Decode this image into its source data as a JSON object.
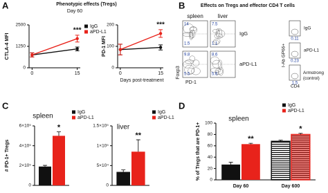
{
  "figure": {
    "panels": [
      {
        "letter": "A",
        "title": "Phenotypic effects (Tregs)",
        "subtitle": "Day 60",
        "xlabel": "Days post-treatment"
      },
      {
        "letter": "B",
        "title": "Effects on Tregs and effector CD4 T cells"
      },
      {
        "letter": "C"
      },
      {
        "letter": "D"
      }
    ]
  },
  "flow": {
    "columns": [
      "spleen",
      "liver"
    ],
    "y_label": "Foxp3",
    "x_label": "PD-1",
    "rows": [
      {
        "label": "IgG",
        "gates": [
          [
            14,
            1.5
          ],
          [
            7.5,
            1.1
          ]
        ]
      },
      {
        "label": "aPD-L1",
        "gates": [
          [
            9.8,
            5.5
          ],
          [
            8.6,
            5.6
          ]
        ]
      }
    ],
    "side": {
      "y_label": "I-Ab GP66+",
      "x_label": "CD4",
      "rows": [
        {
          "label": "IgG",
          "value": 0.11
        },
        {
          "label": "aPD-L1",
          "value": 0.23
        },
        {
          "label": "Armstrong (control)",
          "value": 1.5
        }
      ]
    }
  },
  "chart_data": [
    {
      "type": "line",
      "ylabel": "CTLA-4 MFI",
      "x": [
        0,
        15
      ],
      "xlim": [
        -1,
        16
      ],
      "xticks": [
        0,
        15
      ],
      "ylim": [
        0,
        2500
      ],
      "yticks": [
        0,
        1250,
        2500
      ],
      "legend": "upper right",
      "series": [
        {
          "name": "IgG",
          "color": "#111111",
          "values": [
            750,
            1100
          ],
          "errors": [
            120,
            110
          ]
        },
        {
          "name": "aPD-L1",
          "color": "#e8231b",
          "values": [
            750,
            1700
          ],
          "errors": [
            120,
            200
          ]
        }
      ],
      "annotations": [
        {
          "text": "***",
          "x": 15,
          "series": 1
        }
      ]
    },
    {
      "type": "line",
      "ylabel": "PD-1 MFI",
      "x": [
        0,
        15
      ],
      "xlim": [
        -1,
        16
      ],
      "xticks": [
        0,
        15
      ],
      "ylim": [
        0,
        200
      ],
      "yticks": [
        0,
        100,
        200
      ],
      "legend": "none",
      "series": [
        {
          "name": "IgG",
          "color": "#111111",
          "values": [
            85,
            95
          ],
          "errors": [
            25,
            12
          ]
        },
        {
          "name": "aPD-L1",
          "color": "#e8231b",
          "values": [
            85,
            160
          ],
          "errors": [
            25,
            18
          ]
        }
      ],
      "annotations": [
        {
          "text": "***",
          "x": 15,
          "series": 1
        }
      ]
    },
    {
      "type": "bar",
      "title": "spleen",
      "ylabel": "# PD-1+ Tregs",
      "ylim": [
        0,
        600000
      ],
      "yticks": [
        0,
        {
          "value": 200000,
          "label": "2×10⁵"
        },
        {
          "value": 400000,
          "label": "4×10⁵"
        },
        {
          "value": 600000,
          "label": "6×10⁵"
        }
      ],
      "legend": "upper right",
      "series": [
        {
          "name": "IgG",
          "color": "#111111",
          "values": [
            190000
          ],
          "errors": [
            12000
          ]
        },
        {
          "name": "aPD-L1",
          "color": "#e8231b",
          "values": [
            500000
          ],
          "errors": [
            40000
          ]
        }
      ],
      "annotations": [
        {
          "text": "*",
          "group": 0,
          "series": 1
        }
      ]
    },
    {
      "type": "bar",
      "title": "liver",
      "ylim": [
        0,
        150000
      ],
      "yticks": [
        0,
        {
          "value": 50000,
          "label": "5×10⁴"
        },
        {
          "value": 100000,
          "label": "1×10⁵"
        },
        {
          "value": 150000,
          "label": "1.5×10⁵"
        }
      ],
      "legend": "upper right",
      "series": [
        {
          "name": "IgG",
          "color": "#111111",
          "values": [
            34000
          ],
          "errors": [
            5000
          ]
        },
        {
          "name": "aPD-L1",
          "color": "#e8231b",
          "values": [
            85000
          ],
          "errors": [
            30000
          ]
        }
      ],
      "annotations": [
        {
          "text": "**",
          "group": 0,
          "series": 1
        }
      ]
    },
    {
      "type": "bar",
      "title": "spleen",
      "ylabel": "% of Tregs that are PD-1+",
      "categories": [
        "Day 60",
        "Day 600"
      ],
      "ylim": [
        0,
        100
      ],
      "yticks": [
        0,
        20,
        40,
        60,
        80,
        100
      ],
      "legend": "upper right",
      "hatch": [
        false,
        true
      ],
      "series": [
        {
          "name": "IgG",
          "color": "#111111",
          "values": [
            27,
            68
          ],
          "errors": [
            4,
            2
          ]
        },
        {
          "name": "aPD-L1",
          "color": "#e8231b",
          "values": [
            63,
            80
          ],
          "errors": [
            1.5,
            2
          ]
        }
      ],
      "annotations": [
        {
          "text": "**",
          "group": 0,
          "series": 1
        },
        {
          "text": "*",
          "group": 1,
          "series": 1
        }
      ]
    }
  ]
}
